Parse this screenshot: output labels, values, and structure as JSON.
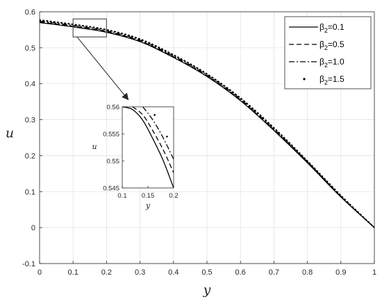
{
  "chart_data": {
    "type": "line",
    "xlabel": "y",
    "ylabel": "u",
    "xlim": [
      0,
      1
    ],
    "ylim": [
      -0.1,
      0.6
    ],
    "xticks": [
      "0",
      "0.1",
      "0.2",
      "0.3",
      "0.4",
      "0.5",
      "0.6",
      "0.7",
      "0.8",
      "0.9",
      "1"
    ],
    "yticks": [
      "-0.1",
      "0",
      "0.1",
      "0.2",
      "0.3",
      "0.4",
      "0.5",
      "0.6"
    ],
    "grid": true,
    "legend_position": "top-right",
    "legend": [
      {
        "sym": "β",
        "sub": "2",
        "text": "=0.1",
        "style": "solid"
      },
      {
        "sym": "β",
        "sub": "2",
        "text": "=0.5",
        "style": "dashed"
      },
      {
        "sym": "β",
        "sub": "2",
        "text": "=1.0",
        "style": "dashdot"
      },
      {
        "sym": "β",
        "sub": "2",
        "text": "=1.5",
        "style": "dotted"
      }
    ],
    "series": [
      {
        "name": "β2=0.1",
        "style": "solid",
        "x": [
          0,
          0.1,
          0.2,
          0.3,
          0.4,
          0.5,
          0.6,
          0.7,
          0.8,
          0.9,
          1.0
        ],
        "y": [
          0.57,
          0.558,
          0.543,
          0.517,
          0.473,
          0.42,
          0.353,
          0.27,
          0.18,
          0.085,
          0.0
        ]
      },
      {
        "name": "β2=0.5",
        "style": "dashed",
        "x": [
          0,
          0.1,
          0.2,
          0.3,
          0.4,
          0.5,
          0.6,
          0.7,
          0.8,
          0.9,
          1.0
        ],
        "y": [
          0.572,
          0.56,
          0.545,
          0.519,
          0.475,
          0.422,
          0.355,
          0.272,
          0.182,
          0.086,
          0.0
        ]
      },
      {
        "name": "β2=1.0",
        "style": "dashdot",
        "x": [
          0,
          0.1,
          0.2,
          0.3,
          0.4,
          0.5,
          0.6,
          0.7,
          0.8,
          0.9,
          1.0
        ],
        "y": [
          0.574,
          0.562,
          0.547,
          0.521,
          0.477,
          0.424,
          0.357,
          0.274,
          0.183,
          0.087,
          0.0
        ]
      },
      {
        "name": "β2=1.5",
        "style": "dotted",
        "x": [
          0,
          0.1,
          0.2,
          0.3,
          0.4,
          0.5,
          0.6,
          0.7,
          0.8,
          0.9,
          1.0
        ],
        "y": [
          0.577,
          0.565,
          0.55,
          0.524,
          0.48,
          0.427,
          0.36,
          0.277,
          0.185,
          0.089,
          0.0
        ]
      }
    ],
    "inset": {
      "xlabel": "y",
      "ylabel": "u",
      "xlim": [
        0.1,
        0.2
      ],
      "ylim": [
        0.545,
        0.56
      ],
      "xticks": [
        "0.1",
        "0.15",
        "0.2"
      ],
      "yticks": [
        "0.545",
        "0.55",
        "0.555",
        "0.56"
      ],
      "series": [
        {
          "name": "β2=0.1",
          "style": "solid",
          "x": [
            0.1,
            0.12,
            0.14,
            0.16,
            0.18,
            0.2
          ],
          "y": [
            0.56,
            0.5595,
            0.5575,
            0.554,
            0.55,
            0.545
          ]
        },
        {
          "name": "β2=0.5",
          "style": "dashed",
          "x": [
            0.12,
            0.14,
            0.16,
            0.18,
            0.2
          ],
          "y": [
            0.56,
            0.5585,
            0.5555,
            0.552,
            0.5478
          ]
        },
        {
          "name": "β2=1.0",
          "style": "dashdot",
          "x": [
            0.14,
            0.16,
            0.18,
            0.2
          ],
          "y": [
            0.56,
            0.5575,
            0.5542,
            0.5503
          ]
        },
        {
          "name": "β2=1.5",
          "style": "dotted",
          "x": [
            0.163,
            0.187
          ],
          "y": [
            0.5585,
            0.5545
          ]
        }
      ]
    },
    "zoom_box": {
      "xlim": [
        0.1,
        0.2
      ],
      "ylim": [
        0.53,
        0.58
      ]
    }
  }
}
